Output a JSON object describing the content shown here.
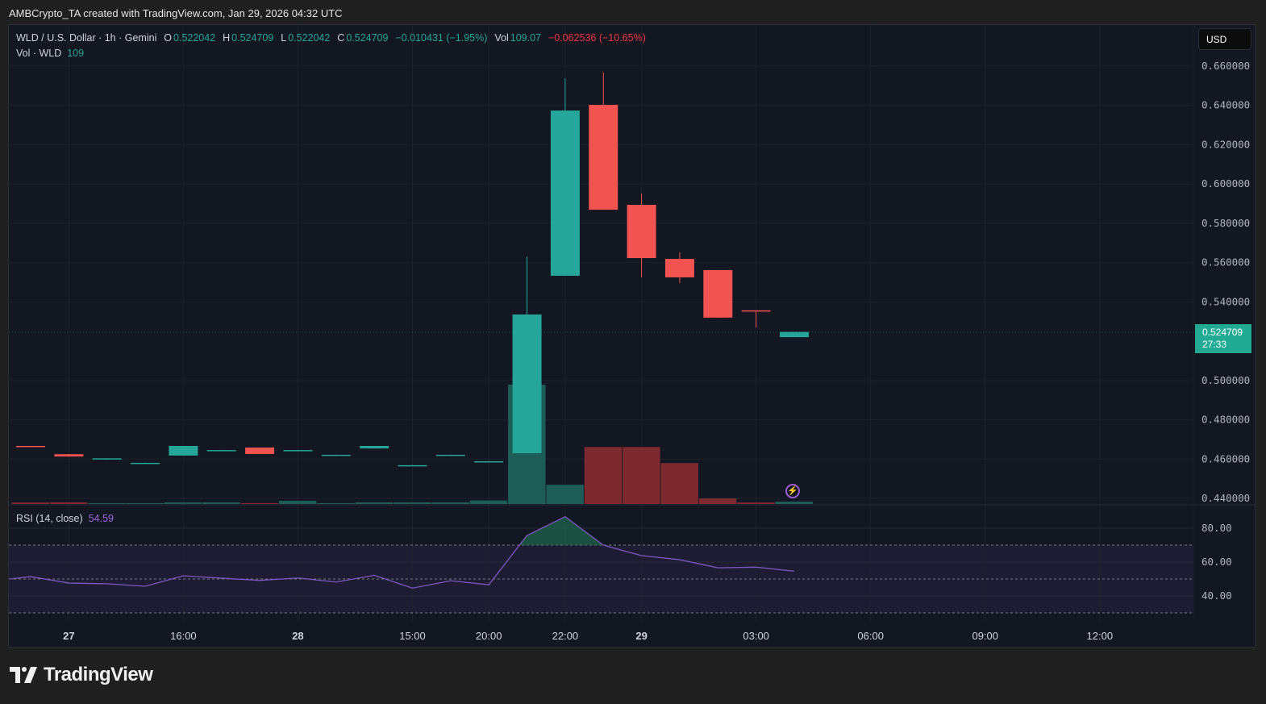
{
  "credit": "AMBCrypto_TA created with TradingView.com, Jan 29, 2026 04:32 UTC",
  "legend": {
    "symbol": "WLD / U.S. Dollar · 1h · Gemini",
    "o_label": "O",
    "o": "0.522042",
    "h_label": "H",
    "h": "0.524709",
    "l_label": "L",
    "l": "0.522042",
    "c_label": "C",
    "c": "0.524709",
    "change": "−0.010431 (−1.95%)",
    "vol_label": "Vol",
    "vol": "109.07",
    "change2": "−0.062536 (−10.65%)",
    "vol_row_label": "Vol · WLD",
    "vol_row_value": "109"
  },
  "currency_button": "USD",
  "last_price": {
    "price": "0.524709",
    "countdown": "27:33"
  },
  "rsi_legend": {
    "label": "RSI (14, close)",
    "value": "54.59"
  },
  "brand": "TradingView",
  "colors": {
    "up": "#26a69a",
    "down": "#f23645",
    "rsi": "#7e57c2",
    "background": "#131722"
  },
  "chart_data": [
    {
      "type": "candlestick",
      "title": "WLD / U.S. Dollar · 1h · Gemini",
      "ylim": [
        0.44,
        0.66
      ],
      "y_ticks": [
        "0.660000",
        "0.640000",
        "0.620000",
        "0.600000",
        "0.580000",
        "0.560000",
        "0.540000",
        "0.500000",
        "0.480000",
        "0.460000",
        "0.440000"
      ],
      "y_tick_values": [
        0.66,
        0.64,
        0.62,
        0.6,
        0.58,
        0.56,
        0.54,
        0.5,
        0.48,
        0.46,
        0.44
      ],
      "x_ticks": [
        {
          "label": "27",
          "bar": 1,
          "bold": true
        },
        {
          "label": "16:00",
          "bar": 4
        },
        {
          "label": "28",
          "bar": 7,
          "bold": true
        },
        {
          "label": "15:00",
          "bar": 10
        },
        {
          "label": "20:00",
          "bar": 12
        },
        {
          "label": "22:00",
          "bar": 14
        },
        {
          "label": "29",
          "bar": 16,
          "bold": true
        },
        {
          "label": "03:00",
          "bar": 19
        },
        {
          "label": "06:00",
          "bar": 22
        },
        {
          "label": "09:00",
          "bar": 25
        },
        {
          "label": "12:00",
          "bar": 28
        }
      ],
      "ohlc": [
        [
          0.4667,
          0.4667,
          0.4667,
          0.4666
        ],
        [
          0.4625,
          0.4626,
          0.4612,
          0.4613
        ],
        [
          0.4604,
          0.4605,
          0.4603,
          0.4604
        ],
        [
          0.4581,
          0.4582,
          0.458,
          0.4581
        ],
        [
          0.4618,
          0.4667,
          0.4618,
          0.4667
        ],
        [
          0.4646,
          0.4647,
          0.4645,
          0.4646
        ],
        [
          0.4659,
          0.4659,
          0.4626,
          0.4626
        ],
        [
          0.4646,
          0.4647,
          0.4645,
          0.4646
        ],
        [
          0.4622,
          0.4623,
          0.4621,
          0.4622
        ],
        [
          0.4654,
          0.4667,
          0.4654,
          0.4667
        ],
        [
          0.4569,
          0.457,
          0.4568,
          0.4569
        ],
        [
          0.4622,
          0.4623,
          0.4621,
          0.4622
        ],
        [
          0.4589,
          0.459,
          0.4588,
          0.4589
        ],
        [
          0.463,
          0.5631,
          0.463,
          0.5336
        ],
        [
          0.5533,
          0.6538,
          0.5533,
          0.6374
        ],
        [
          0.6403,
          0.6567,
          0.5869,
          0.5869
        ],
        [
          0.5894,
          0.5952,
          0.5525,
          0.5623
        ],
        [
          0.5619,
          0.5652,
          0.5496,
          0.5525
        ],
        [
          0.5562,
          0.5562,
          0.532,
          0.532
        ],
        [
          0.5357,
          0.5357,
          0.527,
          0.5352
        ],
        [
          0.522042,
          0.524709,
          0.522042,
          0.524709
        ]
      ],
      "volume": [
        70,
        75,
        40,
        40,
        75,
        75,
        40,
        145,
        40,
        75,
        75,
        75,
        160,
        5400,
        870,
        2580,
        2580,
        1850,
        250,
        70,
        109
      ]
    },
    {
      "type": "line",
      "title": "RSI (14, close)",
      "ylim": [
        20,
        95
      ],
      "bands": {
        "upper": 70,
        "middle": 50,
        "lower": 30
      },
      "y_ticks": [
        "80.00",
        "60.00",
        "40.00"
      ],
      "y_tick_values": [
        80,
        60,
        40
      ],
      "start_bar": -1,
      "values": [
        50,
        51.4,
        47.6,
        47.2,
        45.7,
        51.9,
        50.5,
        49.2,
        50.6,
        48.2,
        52.2,
        44.6,
        49,
        46.6,
        75.7,
        86.8,
        70,
        63.8,
        61.4,
        56.6,
        57,
        54.59
      ]
    }
  ]
}
